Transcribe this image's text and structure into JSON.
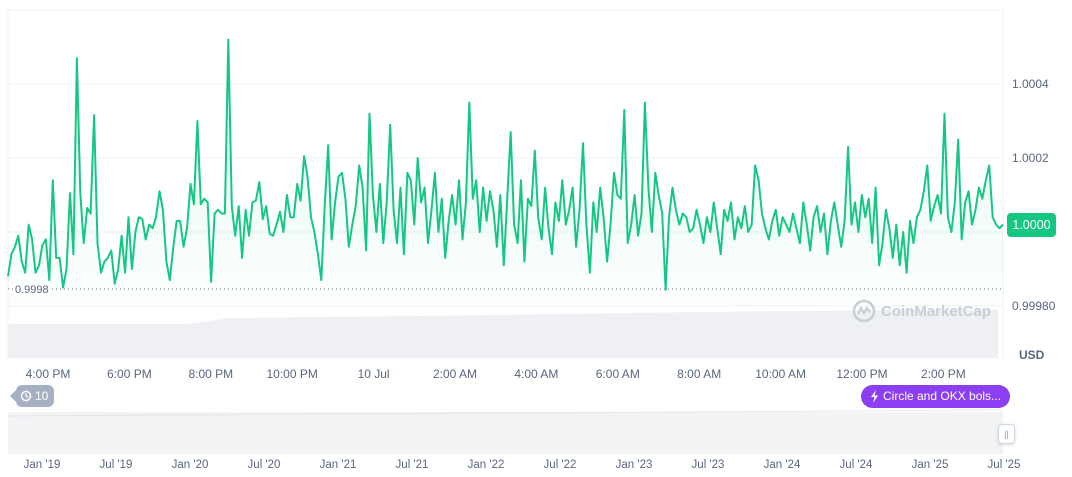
{
  "chart_data": {
    "type": "line",
    "currency": "USD",
    "series_color": "#16c784",
    "current_price_label": "1.0000",
    "min_label": "0.9998",
    "y_ticks": [
      "1.0004",
      "1.0002",
      "1.0000",
      "0.99980"
    ],
    "y_tick_values": [
      1.0004,
      1.0002,
      1.0,
      0.9998
    ],
    "ylim": [
      0.9998,
      1.0006
    ],
    "grid": true,
    "x_ticks": [
      "4:00 PM",
      "6:00 PM",
      "8:00 PM",
      "10:00 PM",
      "10 Jul",
      "2:00 AM",
      "4:00 AM",
      "6:00 AM",
      "8:00 AM",
      "10:00 AM",
      "12:00 PM",
      "2:00 PM"
    ],
    "values": [
      0.99988,
      0.99994,
      0.99996,
      0.99999,
      0.99992,
      0.99989,
      1.00002,
      0.99998,
      0.99989,
      0.99991,
      0.999965,
      0.99998,
      0.99987,
      1.00014,
      0.99993,
      0.99993,
      0.99985,
      0.9999,
      1.000105,
      0.99994,
      1.00047,
      1.000105,
      0.99997,
      1.000065,
      1.00005,
      1.000316,
      0.99997,
      0.99989,
      0.99992,
      0.99993,
      0.99995,
      0.99986,
      0.9999,
      0.99999,
      0.99989,
      1.00004,
      0.9999,
      1.0,
      1.00004,
      1.000035,
      0.99998,
      1.00002,
      1.00001,
      1.00004,
      1.00011,
      1.00006,
      0.99992,
      0.99987,
      0.99996,
      1.00003,
      1.00003,
      0.99996,
      1.00001,
      1.00013,
      1.000075,
      1.0003,
      1.000075,
      1.00009,
      1.00008,
      0.999865,
      1.00005,
      1.00006,
      1.00005,
      1.00005,
      1.00052,
      1.00007,
      0.99999,
      1.00007,
      0.99993,
      1.00006,
      0.99999,
      1.00008,
      1.000085,
      1.000135,
      1.000035,
      1.00007,
      0.999995,
      0.99999,
      1.00002,
      1.000055,
      1.0,
      1.0001,
      1.00004,
      1.00004,
      1.00013,
      1.000085,
      1.000205,
      1.00015,
      1.00004,
      1.0,
      0.99994,
      0.99987,
      1.00007,
      1.000235,
      0.99998,
      1.00008,
      1.00015,
      1.00016,
      1.00009,
      0.99996,
      1.00002,
      1.00007,
      1.00018,
      1.00012,
      0.99995,
      1.00032,
      1.0001,
      1.0,
      1.00013,
      0.99997,
      1.00008,
      1.00029,
      1.00006,
      0.99997,
      1.00012,
      0.99994,
      1.00016,
      1.00014,
      1.00002,
      1.0002,
      1.00008,
      1.00012,
      0.99997,
      1.00006,
      1.00016,
      1.0,
      1.00009,
      0.99993,
      1.00003,
      1.0001,
      1.00002,
      1.00014,
      0.99998,
      1.00008,
      1.00035,
      1.00009,
      1.00014,
      1.0,
      1.00012,
      1.00003,
      1.00011,
      1.00006,
      0.99996,
      1.0001,
      0.99991,
      1.00009,
      1.00027,
      1.00002,
      0.99997,
      1.00014,
      0.99992,
      1.00009,
      1.00007,
      1.00022,
      1.00004,
      0.99998,
      1.00012,
      1.00001,
      0.99994,
      1.00008,
      1.00003,
      1.00014,
      1.00002,
      1.00006,
      1.00012,
      0.99996,
      1.00006,
      1.00024,
      1.00002,
      0.99989,
      1.00008,
      1.0,
      1.00012,
      1.00004,
      0.99992,
      1.00002,
      1.00016,
      1.0001,
      1.00009,
      1.00033,
      0.99997,
      1.00002,
      1.0001,
      0.99999,
      1.00005,
      1.00035,
      1.00012,
      1.0,
      1.00016,
      1.0001,
      1.00005,
      0.999844,
      1.00004,
      1.00012,
      1.00006,
      1.00002,
      1.00005,
      1.00004,
      1.0,
      1.00001,
      1.00006,
      1.00002,
      0.99997,
      1.00004,
      1.0,
      1.00008,
      1.00001,
      0.99994,
      1.00006,
      1.00003,
      1.00008,
      0.99998,
      1.00004,
      1.00001,
      1.00007,
      1.0,
      1.00002,
      1.00018,
      1.00014,
      1.00005,
      1.00001,
      0.99998,
      1.00003,
      1.00006,
      0.99999,
      1.00004,
      1.00002,
      1.0,
      1.00005,
      1.00001,
      0.99997,
      1.00008,
      1.00002,
      0.99995,
      1.00004,
      1.00007,
      1.0,
      1.00005,
      0.99994,
      1.00003,
      1.00008,
      1.00002,
      0.99996,
      1.00003,
      1.00023,
      1.00002,
      1.00008,
      1.0,
      1.0001,
      1.00004,
      1.00009,
      0.99997,
      1.00012,
      0.99991,
      0.99997,
      1.00006,
      1.00001,
      0.99993,
      1.00002,
      0.99991,
      1.0,
      0.99989,
      1.00003,
      0.99997,
      1.00004,
      1.00006,
      1.00011,
      1.00018,
      1.00003,
      1.00007,
      1.0001,
      1.00005,
      1.00032,
      1.00004,
      1.0,
      1.00008,
      1.00025,
      0.99998,
      1.00008,
      1.00011,
      1.00002,
      1.00006,
      1.00012,
      1.00009,
      1.00014,
      1.00018,
      1.00004,
      1.00002,
      1.00001,
      1.00002
    ]
  },
  "navigator": {
    "x_ticks": [
      "Jan '19",
      "Jul '19",
      "Jan '20",
      "Jul '20",
      "Jan '21",
      "Jul '21",
      "Jan '22",
      "Jul '22",
      "Jan '23",
      "Jul '23",
      "Jan '24",
      "Jul '24",
      "Jan '25",
      "Jul '25"
    ]
  },
  "badges": {
    "history_count": "10",
    "news_label": "Circle and OKX bols...",
    "news_color": "#8c3ff0"
  },
  "watermark": "CoinMarketCap"
}
